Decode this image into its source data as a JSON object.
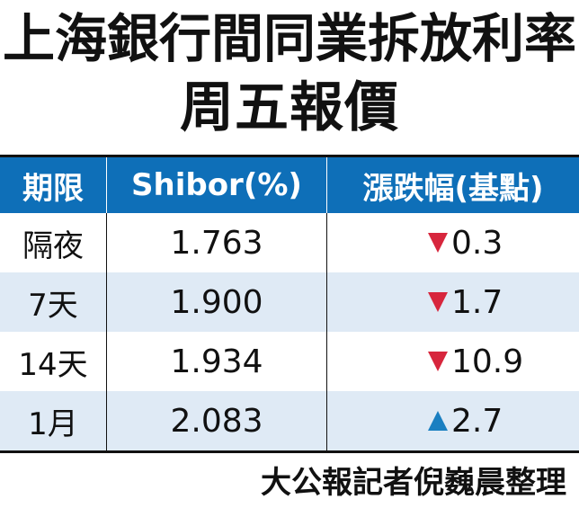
{
  "title_line1": "上海銀行間同業拆放利率",
  "title_line2": "周五報價",
  "chart_data": {
    "type": "table",
    "columns": [
      "期限",
      "Shibor(%)",
      "漲跌幅(基點)"
    ],
    "rows": [
      {
        "term": "隔夜",
        "shibor": "1.763",
        "direction": "down",
        "change": "0.3"
      },
      {
        "term": "7天",
        "shibor": "1.900",
        "direction": "down",
        "change": "1.7"
      },
      {
        "term": "14天",
        "shibor": "1.934",
        "direction": "down",
        "change": "10.9"
      },
      {
        "term": "1月",
        "shibor": "2.083",
        "direction": "up",
        "change": "2.7"
      }
    ]
  },
  "colors": {
    "header_bg": "#0e6fb8",
    "alt_row_bg": "#dfeaf5",
    "down": "#d7263d",
    "up": "#1a7fc1"
  },
  "icons": {
    "down": "down-triangle-icon",
    "up": "up-triangle-icon"
  },
  "source": "大公報記者倪巍晨整理"
}
